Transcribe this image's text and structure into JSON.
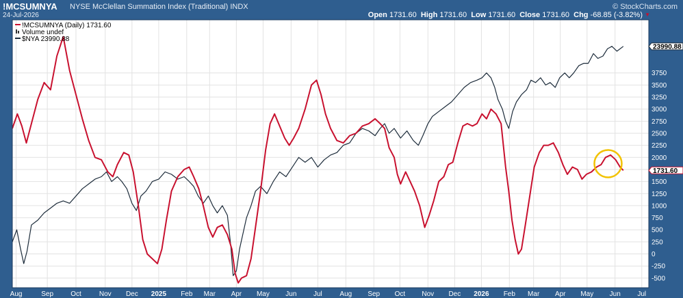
{
  "header": {
    "ticker": "!MCSUMNYA",
    "description": "NYSE McClellan Summation Index (Traditional)  INDX",
    "date": "24-Jul-2026",
    "brand": "© StockCharts.com",
    "open_label": "Open",
    "open_value": "1731.60",
    "high_label": "High",
    "high_value": "1731.60",
    "low_label": "Low",
    "low_value": "1731.60",
    "close_label": "Close",
    "close_value": "1731.60",
    "chg_label": "Chg",
    "chg_value": "-68.85 (-3.82%)",
    "chg_icon": "down-triangle-icon"
  },
  "legend": [
    {
      "text": "!MCSUMNYA (Daily) 1731.60",
      "color": "#c8102e",
      "icon": "line-swatch-icon"
    },
    {
      "text": "Volume undef",
      "color": "#333333",
      "icon": "bar-swatch-icon"
    },
    {
      "text": "$NYA 23990.88",
      "color": "#1c2b3a",
      "icon": "line-swatch-icon"
    }
  ],
  "last_labels": {
    "nya": "23990.88",
    "mcsum": "1731.60"
  },
  "colors": {
    "mcsum_line": "#c8102e",
    "nya_line": "#1c2b3a",
    "highlight_circle": "#f2c200",
    "frame": "#2f5e8f",
    "plot_bg": "#ffffff",
    "grid": "#e2e2e2"
  },
  "chart_data": {
    "type": "line",
    "title": "!MCSUMNYA",
    "grid": true,
    "y_axis_position": "right",
    "ylim": [
      -700,
      4850
    ],
    "yticks": [
      -500,
      -250,
      0,
      250,
      500,
      750,
      1000,
      1250,
      1500,
      1750,
      2000,
      2250,
      2500,
      2750,
      3000,
      3250,
      3500,
      3750
    ],
    "x_domain": [
      0,
      100
    ],
    "x_ticks": [
      {
        "label": "Aug",
        "x": 0.6,
        "bold": false
      },
      {
        "label": "Sep",
        "x": 5.5,
        "bold": false
      },
      {
        "label": "Oct",
        "x": 10.0,
        "bold": false
      },
      {
        "label": "Nov",
        "x": 14.6,
        "bold": false
      },
      {
        "label": "Dec",
        "x": 18.8,
        "bold": false
      },
      {
        "label": "2025",
        "x": 23.0,
        "bold": true
      },
      {
        "label": "Feb",
        "x": 27.4,
        "bold": false
      },
      {
        "label": "Mar",
        "x": 31.0,
        "bold": false
      },
      {
        "label": "Apr",
        "x": 35.2,
        "bold": false
      },
      {
        "label": "May",
        "x": 39.4,
        "bold": false
      },
      {
        "label": "Jun",
        "x": 43.8,
        "bold": false
      },
      {
        "label": "Jul",
        "x": 48.0,
        "bold": false
      },
      {
        "label": "Aug",
        "x": 52.4,
        "bold": false
      },
      {
        "label": "Sep",
        "x": 56.8,
        "bold": false
      },
      {
        "label": "Oct",
        "x": 60.9,
        "bold": false
      },
      {
        "label": "Nov",
        "x": 65.3,
        "bold": false
      },
      {
        "label": "Dec",
        "x": 69.5,
        "bold": false
      },
      {
        "label": "2026",
        "x": 73.7,
        "bold": true
      },
      {
        "label": "Feb",
        "x": 78.1,
        "bold": false
      },
      {
        "label": "Mar",
        "x": 81.9,
        "bold": false
      },
      {
        "label": "Apr",
        "x": 86.1,
        "bold": false
      },
      {
        "label": "May",
        "x": 90.3,
        "bold": false
      },
      {
        "label": "Jun",
        "x": 94.7,
        "bold": false
      },
      {
        "label": "Jul",
        "x": 98.9,
        "bold": false
      }
    ],
    "series": [
      {
        "name": "!MCSUMNYA (Daily) 1731.60",
        "axis": "left",
        "points": [
          [
            0.0,
            2600
          ],
          [
            0.8,
            2900
          ],
          [
            1.5,
            2650
          ],
          [
            2.2,
            2300
          ],
          [
            3.0,
            2700
          ],
          [
            4.0,
            3200
          ],
          [
            5.0,
            3550
          ],
          [
            6.0,
            3400
          ],
          [
            7.0,
            4100
          ],
          [
            8.0,
            4500
          ],
          [
            9.0,
            3800
          ],
          [
            10.0,
            3300
          ],
          [
            11.0,
            2800
          ],
          [
            12.0,
            2350
          ],
          [
            13.0,
            2000
          ],
          [
            14.0,
            1950
          ],
          [
            15.0,
            1700
          ],
          [
            15.8,
            1600
          ],
          [
            16.5,
            1850
          ],
          [
            17.5,
            2100
          ],
          [
            18.3,
            2050
          ],
          [
            19.0,
            1700
          ],
          [
            19.8,
            1000
          ],
          [
            20.5,
            300
          ],
          [
            21.2,
            0
          ],
          [
            22.0,
            -100
          ],
          [
            22.8,
            -200
          ],
          [
            23.5,
            100
          ],
          [
            24.2,
            700
          ],
          [
            25.0,
            1300
          ],
          [
            26.0,
            1600
          ],
          [
            27.0,
            1750
          ],
          [
            27.8,
            1800
          ],
          [
            28.5,
            1600
          ],
          [
            29.3,
            1350
          ],
          [
            30.0,
            1000
          ],
          [
            30.8,
            550
          ],
          [
            31.5,
            350
          ],
          [
            32.2,
            550
          ],
          [
            33.0,
            600
          ],
          [
            33.8,
            400
          ],
          [
            34.5,
            100
          ],
          [
            35.0,
            -400
          ],
          [
            35.5,
            -600
          ],
          [
            36.0,
            -500
          ],
          [
            36.8,
            -450
          ],
          [
            37.5,
            -100
          ],
          [
            38.2,
            550
          ],
          [
            39.0,
            1300
          ],
          [
            39.8,
            2150
          ],
          [
            40.5,
            2700
          ],
          [
            41.2,
            2900
          ],
          [
            42.0,
            2650
          ],
          [
            42.8,
            2400
          ],
          [
            43.5,
            2250
          ],
          [
            44.2,
            2400
          ],
          [
            45.0,
            2600
          ],
          [
            46.0,
            3000
          ],
          [
            47.0,
            3500
          ],
          [
            47.8,
            3600
          ],
          [
            48.5,
            3300
          ],
          [
            49.2,
            2900
          ],
          [
            50.0,
            2600
          ],
          [
            51.0,
            2350
          ],
          [
            52.0,
            2300
          ],
          [
            53.0,
            2450
          ],
          [
            54.0,
            2500
          ],
          [
            55.0,
            2650
          ],
          [
            56.0,
            2700
          ],
          [
            57.0,
            2800
          ],
          [
            57.8,
            2700
          ],
          [
            58.5,
            2600
          ],
          [
            59.2,
            2200
          ],
          [
            60.0,
            2000
          ],
          [
            60.5,
            1650
          ],
          [
            61.0,
            1450
          ],
          [
            61.8,
            1700
          ],
          [
            62.5,
            1500
          ],
          [
            63.2,
            1300
          ],
          [
            64.0,
            1000
          ],
          [
            64.8,
            550
          ],
          [
            65.5,
            800
          ],
          [
            66.2,
            1100
          ],
          [
            67.0,
            1500
          ],
          [
            67.8,
            1600
          ],
          [
            68.5,
            1850
          ],
          [
            69.2,
            1900
          ],
          [
            70.0,
            2300
          ],
          [
            70.8,
            2650
          ],
          [
            71.5,
            2700
          ],
          [
            72.3,
            2650
          ],
          [
            73.0,
            2700
          ],
          [
            73.8,
            2900
          ],
          [
            74.5,
            2800
          ],
          [
            75.2,
            3000
          ],
          [
            76.0,
            2900
          ],
          [
            76.8,
            2700
          ],
          [
            77.5,
            1800
          ],
          [
            78.0,
            1300
          ],
          [
            78.5,
            700
          ],
          [
            79.0,
            300
          ],
          [
            79.5,
            0
          ],
          [
            80.0,
            100
          ],
          [
            80.6,
            600
          ],
          [
            81.3,
            1200
          ],
          [
            82.0,
            1800
          ],
          [
            82.8,
            2100
          ],
          [
            83.5,
            2250
          ],
          [
            84.2,
            2250
          ],
          [
            85.0,
            2300
          ],
          [
            85.8,
            2100
          ],
          [
            86.5,
            1850
          ],
          [
            87.2,
            1650
          ],
          [
            88.0,
            1800
          ],
          [
            88.8,
            1750
          ],
          [
            89.5,
            1550
          ],
          [
            90.2,
            1650
          ],
          [
            91.0,
            1700
          ],
          [
            91.8,
            1800
          ],
          [
            92.5,
            1850
          ],
          [
            93.2,
            2000
          ],
          [
            94.0,
            2050
          ],
          [
            94.8,
            1950
          ],
          [
            95.5,
            1800
          ],
          [
            96.0,
            1731.6
          ]
        ]
      },
      {
        "name": "$NYA 23990.88",
        "axis": "right",
        "points": [
          [
            0.0,
            250
          ],
          [
            0.7,
            500
          ],
          [
            1.3,
            100
          ],
          [
            1.8,
            -200
          ],
          [
            2.3,
            50
          ],
          [
            3.0,
            600
          ],
          [
            4.0,
            700
          ],
          [
            5.0,
            850
          ],
          [
            6.0,
            950
          ],
          [
            7.0,
            1050
          ],
          [
            8.0,
            1100
          ],
          [
            9.0,
            1050
          ],
          [
            10.0,
            1200
          ],
          [
            11.0,
            1350
          ],
          [
            12.0,
            1450
          ],
          [
            13.0,
            1550
          ],
          [
            14.0,
            1600
          ],
          [
            14.8,
            1700
          ],
          [
            15.6,
            1500
          ],
          [
            16.5,
            1600
          ],
          [
            17.2,
            1500
          ],
          [
            18.0,
            1350
          ],
          [
            18.8,
            1050
          ],
          [
            19.5,
            900
          ],
          [
            20.2,
            1200
          ],
          [
            21.0,
            1300
          ],
          [
            22.0,
            1500
          ],
          [
            23.0,
            1550
          ],
          [
            24.0,
            1700
          ],
          [
            25.0,
            1650
          ],
          [
            26.0,
            1550
          ],
          [
            27.0,
            1600
          ],
          [
            27.8,
            1500
          ],
          [
            28.5,
            1400
          ],
          [
            29.2,
            1200
          ],
          [
            30.0,
            1050
          ],
          [
            30.8,
            1200
          ],
          [
            31.5,
            1000
          ],
          [
            32.2,
            850
          ],
          [
            33.0,
            1000
          ],
          [
            33.8,
            800
          ],
          [
            34.3,
            200
          ],
          [
            34.7,
            -450
          ],
          [
            35.2,
            -350
          ],
          [
            35.7,
            100
          ],
          [
            36.2,
            400
          ],
          [
            36.8,
            750
          ],
          [
            37.5,
            1000
          ],
          [
            38.2,
            1300
          ],
          [
            39.0,
            1400
          ],
          [
            40.0,
            1250
          ],
          [
            41.0,
            1500
          ],
          [
            42.0,
            1700
          ],
          [
            43.0,
            1600
          ],
          [
            44.0,
            1800
          ],
          [
            45.0,
            2000
          ],
          [
            46.0,
            1900
          ],
          [
            47.0,
            2000
          ],
          [
            48.0,
            1800
          ],
          [
            49.0,
            1950
          ],
          [
            50.0,
            2050
          ],
          [
            51.0,
            2100
          ],
          [
            52.0,
            2250
          ],
          [
            53.0,
            2300
          ],
          [
            54.0,
            2500
          ],
          [
            55.0,
            2600
          ],
          [
            56.0,
            2550
          ],
          [
            57.0,
            2450
          ],
          [
            57.8,
            2600
          ],
          [
            58.5,
            2700
          ],
          [
            59.2,
            2500
          ],
          [
            60.0,
            2600
          ],
          [
            61.0,
            2400
          ],
          [
            62.0,
            2550
          ],
          [
            63.0,
            2350
          ],
          [
            63.8,
            2250
          ],
          [
            64.5,
            2450
          ],
          [
            65.3,
            2700
          ],
          [
            66.0,
            2850
          ],
          [
            67.0,
            2950
          ],
          [
            68.0,
            3050
          ],
          [
            69.0,
            3150
          ],
          [
            70.0,
            3300
          ],
          [
            71.0,
            3450
          ],
          [
            72.0,
            3550
          ],
          [
            73.0,
            3600
          ],
          [
            73.8,
            3650
          ],
          [
            74.5,
            3750
          ],
          [
            75.2,
            3650
          ],
          [
            75.8,
            3450
          ],
          [
            76.3,
            3200
          ],
          [
            77.0,
            3000
          ],
          [
            77.5,
            2750
          ],
          [
            78.0,
            2600
          ],
          [
            78.6,
            2950
          ],
          [
            79.2,
            3150
          ],
          [
            80.0,
            3300
          ],
          [
            80.8,
            3400
          ],
          [
            81.5,
            3600
          ],
          [
            82.2,
            3550
          ],
          [
            83.0,
            3650
          ],
          [
            83.8,
            3500
          ],
          [
            84.5,
            3550
          ],
          [
            85.3,
            3450
          ],
          [
            86.0,
            3650
          ],
          [
            86.8,
            3750
          ],
          [
            87.5,
            3650
          ],
          [
            88.2,
            3750
          ],
          [
            89.0,
            3900
          ],
          [
            89.8,
            3950
          ],
          [
            90.5,
            3950
          ],
          [
            91.3,
            4150
          ],
          [
            92.0,
            4050
          ],
          [
            92.8,
            4100
          ],
          [
            93.5,
            4250
          ],
          [
            94.2,
            4300
          ],
          [
            95.0,
            4200
          ],
          [
            96.0,
            4300
          ]
        ]
      }
    ],
    "annotation": {
      "type": "circle",
      "x": 93.6,
      "y": 1870,
      "color": "#f2c200"
    }
  }
}
